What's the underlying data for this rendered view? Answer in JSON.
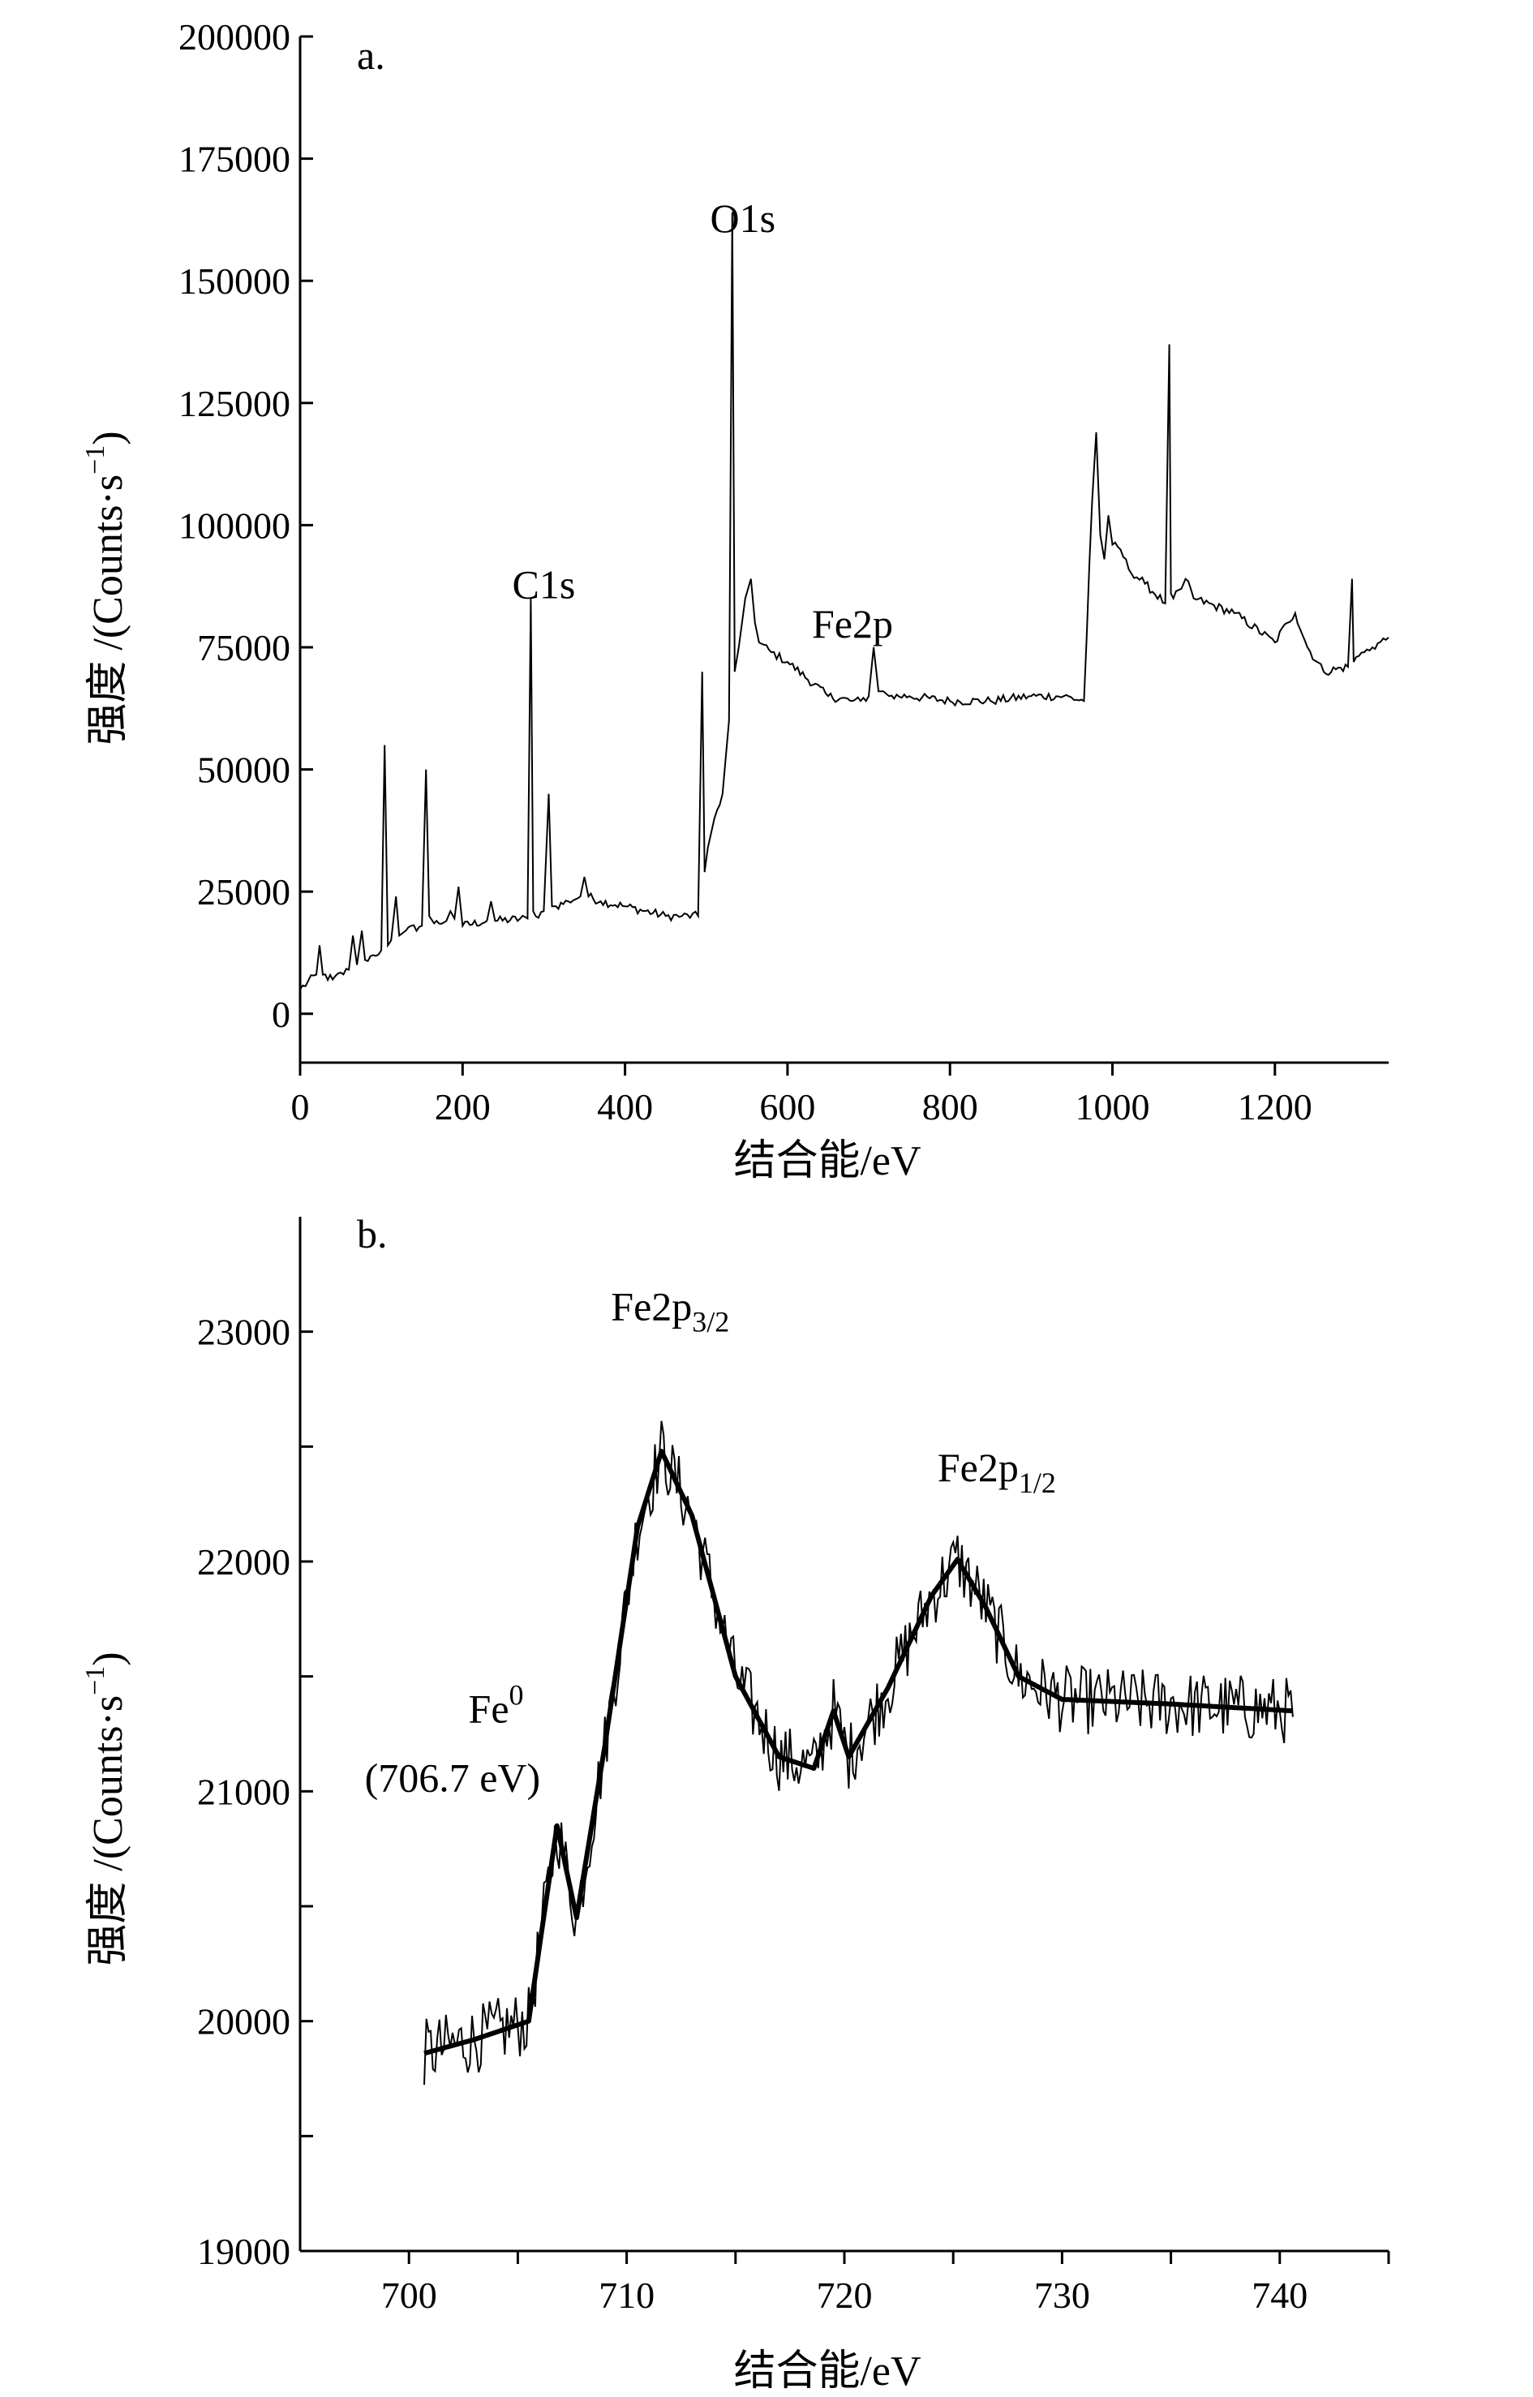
{
  "chart_data": [
    {
      "id": "a",
      "type": "line",
      "panel_label": "a.",
      "xlabel": "结合能/eV",
      "ylabel": "强度 /(Counts·s⁻¹)",
      "xlim": [
        0,
        1340
      ],
      "ylim": [
        -10000,
        200000
      ],
      "x_ticks": [
        0,
        200,
        400,
        600,
        800,
        1000,
        1200
      ],
      "x_tick_labels": [
        "0",
        "200",
        "400",
        "600",
        "800",
        "1000",
        "1200"
      ],
      "y_ticks": [
        0,
        25000,
        50000,
        75000,
        100000,
        125000,
        150000,
        175000,
        200000
      ],
      "y_tick_labels": [
        "0",
        "25000",
        "50000",
        "75000",
        "100000",
        "125000",
        "150000",
        "175000",
        "200000"
      ],
      "grid": false,
      "series": [
        {
          "x": [
            0,
            20,
            24,
            28,
            40,
            60,
            65,
            70,
            76,
            80,
            90,
            100,
            104,
            108,
            112,
            118,
            122,
            130,
            150,
            155,
            159,
            165,
            180,
            185,
            190,
            195,
            200,
            230,
            235,
            240,
            280,
            284,
            287,
            290,
            300,
            306,
            310,
            315,
            330,
            345,
            350,
            355,
            370,
            400,
            450,
            470,
            490,
            495,
            498,
            502,
            510,
            520,
            528,
            532,
            535,
            540,
            548,
            555,
            560,
            565,
            580,
            600,
            650,
            680,
            690,
            700,
            706,
            712,
            718,
            725,
            750,
            800,
            850,
            900,
            940,
            965,
            975,
            980,
            985,
            990,
            995,
            1000,
            1010,
            1020,
            1040,
            1065,
            1070,
            1072,
            1075,
            1085,
            1090,
            1100,
            1150,
            1200,
            1215,
            1225,
            1240,
            1260,
            1290,
            1295,
            1297,
            1300,
            1310,
            1320,
            1340
          ],
          "y": [
            5000,
            8000,
            14000,
            8000,
            7000,
            9000,
            16000,
            10000,
            17000,
            11000,
            12000,
            13000,
            55000,
            14000,
            15000,
            24000,
            16000,
            17000,
            18000,
            50000,
            20000,
            18500,
            19000,
            21000,
            19500,
            26000,
            18000,
            19000,
            23000,
            19000,
            19500,
            85000,
            21000,
            20000,
            21000,
            45000,
            22000,
            22000,
            23000,
            24000,
            28000,
            24000,
            23000,
            22000,
            20000,
            20000,
            20000,
            70000,
            29000,
            34000,
            40000,
            45000,
            60000,
            164000,
            70000,
            75000,
            85000,
            89000,
            80000,
            76000,
            74000,
            72000,
            65000,
            64000,
            64000,
            65000,
            75000,
            66000,
            66000,
            65000,
            65000,
            64000,
            64000,
            65000,
            65000,
            64000,
            105000,
            119000,
            98000,
            93000,
            102000,
            96000,
            95000,
            91000,
            88000,
            84000,
            137000,
            86000,
            85000,
            87000,
            89000,
            85000,
            82000,
            76000,
            80000,
            82000,
            75000,
            70000,
            71000,
            89000,
            72000,
            73000,
            74000,
            75000,
            77000
          ]
        }
      ],
      "annotations": [
        {
          "text": "C1s",
          "x": 300,
          "y": 85000
        },
        {
          "text": "O1s",
          "x": 545,
          "y": 160000
        },
        {
          "text": "Fe2p",
          "x": 680,
          "y": 77000
        }
      ]
    },
    {
      "id": "b",
      "type": "line",
      "panel_label": "b.",
      "xlabel": "结合能/eV",
      "ylabel": "强度 /(Counts·s⁻¹)",
      "xlim": [
        695,
        745
      ],
      "ylim": [
        19000,
        23500
      ],
      "x_ticks": [
        700,
        705,
        710,
        715,
        720,
        725,
        730,
        735,
        740,
        745
      ],
      "x_tick_labels": [
        "700",
        "",
        "710",
        "",
        "720",
        "",
        "730",
        "",
        "740",
        ""
      ],
      "y_ticks": [
        19000,
        19500,
        20000,
        20500,
        21000,
        21500,
        22000,
        22500,
        23000
      ],
      "y_tick_labels": [
        "19000",
        "",
        "20000",
        "",
        "21000",
        "",
        "22000",
        "",
        "23000"
      ],
      "grid": false,
      "series": [
        {
          "role": "raw",
          "noise_amplitude": 150,
          "x": [
            700.7,
            703.0,
            705.5,
            706.8,
            707.7,
            709.0,
            710.5,
            711.6,
            713.0,
            715.0,
            717.0,
            718.6,
            719.5,
            720.2,
            722.0,
            724.0,
            725.2,
            726.5,
            728.0,
            730.0,
            735.0,
            740.6
          ],
          "y": [
            19860,
            19920,
            20000,
            20850,
            20450,
            21200,
            22150,
            22480,
            22200,
            21500,
            21150,
            21100,
            21350,
            21150,
            21450,
            21850,
            22010,
            21800,
            21500,
            21400,
            21380,
            21350
          ]
        },
        {
          "role": "fit",
          "x": [
            700.7,
            703.0,
            705.5,
            706.8,
            707.7,
            709.0,
            710.5,
            711.6,
            713.0,
            715.0,
            717.0,
            718.6,
            719.5,
            720.2,
            722.0,
            724.0,
            725.2,
            726.5,
            728.0,
            730.0,
            735.0,
            740.6
          ],
          "y": [
            19860,
            19920,
            20000,
            20850,
            20450,
            21200,
            22150,
            22480,
            22200,
            21500,
            21150,
            21100,
            21350,
            21150,
            21450,
            21850,
            22010,
            21800,
            21500,
            21400,
            21380,
            21350
          ]
        }
      ],
      "annotations": [
        {
          "base": "Fe2p",
          "sub": "3/2",
          "x": 712,
          "y": 23050
        },
        {
          "base": "Fe2p",
          "sub": "1/2",
          "x": 727,
          "y": 22350
        },
        {
          "base": "Fe",
          "sup": "0",
          "x": 704,
          "y": 21300
        },
        {
          "text": "(706.7 eV)",
          "x": 702,
          "y": 21000
        }
      ]
    }
  ]
}
